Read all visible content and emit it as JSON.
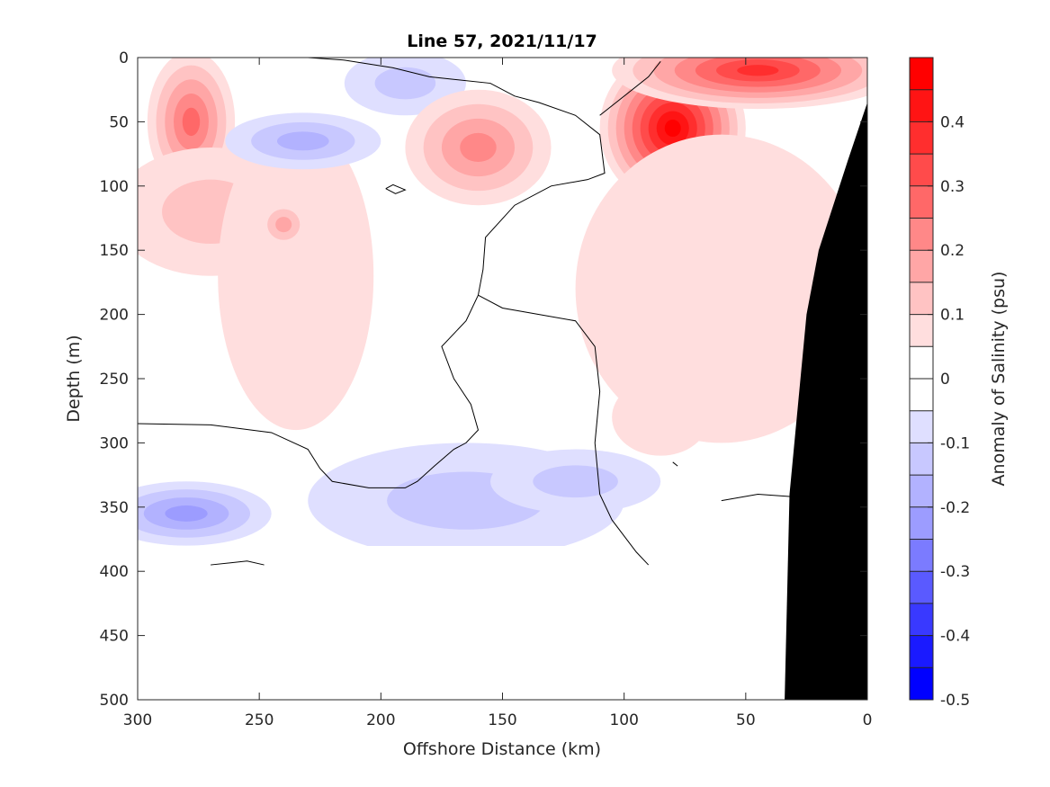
{
  "chart_data": {
    "type": "heatmap",
    "subtype": "filled-contour",
    "title": "Line 57, 2021/11/17",
    "xlabel": "Offshore Distance (km)",
    "ylabel": "Depth (m)",
    "xlim": [
      300,
      0
    ],
    "ylim": [
      500,
      0
    ],
    "x_axis_reversed": true,
    "y_axis_reversed": true,
    "xticks": [
      300,
      250,
      200,
      150,
      100,
      50,
      0
    ],
    "yticks": [
      0,
      50,
      100,
      150,
      200,
      250,
      300,
      350,
      400,
      450,
      500
    ],
    "grid": false,
    "colorbar": {
      "label": "Anomaly of Salinity (psu)",
      "range": [
        -0.5,
        0.5
      ],
      "levels": [
        -0.5,
        -0.45,
        -0.4,
        -0.35,
        -0.3,
        -0.25,
        -0.2,
        -0.15,
        -0.1,
        -0.05,
        0,
        0.05,
        0.1,
        0.15,
        0.2,
        0.25,
        0.3,
        0.35,
        0.4,
        0.45,
        0.5
      ],
      "tick_values": [
        -0.5,
        -0.4,
        -0.3,
        -0.2,
        -0.1,
        0,
        0.1,
        0.2,
        0.3,
        0.4
      ],
      "tick_labels": [
        "-0.5",
        "-0.4",
        "-0.3",
        "-0.2",
        "-0.1",
        "0",
        "0.1",
        "0.2",
        "0.3",
        "0.4"
      ],
      "colors": [
        "#0000ff",
        "#1a1aff",
        "#3939ff",
        "#5a5aff",
        "#7b7bff",
        "#9c9cff",
        "#b2b2ff",
        "#c8c8ff",
        "#dfdfff",
        "#ffffff",
        "#ffffff",
        "#ffdede",
        "#ffc3c3",
        "#ffa6a6",
        "#ff8888",
        "#ff6868",
        "#ff4b4b",
        "#ff2e2e",
        "#ff1414",
        "#ff0000"
      ]
    },
    "data_max_depth_m": 380,
    "anomaly_features": [
      {
        "x": 278,
        "y": 50,
        "value": 0.25,
        "rx": 18,
        "ry": 55
      },
      {
        "x": 270,
        "y": 120,
        "value": 0.1,
        "rx": 40,
        "ry": 50
      },
      {
        "x": 235,
        "y": 170,
        "value": 0.07,
        "rx": 32,
        "ry": 120
      },
      {
        "x": 240,
        "y": 130,
        "value": 0.15,
        "rx": 10,
        "ry": 18
      },
      {
        "x": 232,
        "y": 65,
        "value": -0.19,
        "rx": 32,
        "ry": 22
      },
      {
        "x": 190,
        "y": 20,
        "value": -0.1,
        "rx": 25,
        "ry": 25
      },
      {
        "x": 160,
        "y": 70,
        "value": 0.23,
        "rx": 30,
        "ry": 45
      },
      {
        "x": 80,
        "y": 55,
        "value": 0.45,
        "rx": 30,
        "ry": 60
      },
      {
        "x": 45,
        "y": 10,
        "value": 0.35,
        "rx": 60,
        "ry": 30
      },
      {
        "x": 60,
        "y": 180,
        "value": 0.07,
        "rx": 60,
        "ry": 120
      },
      {
        "x": 85,
        "y": 280,
        "value": 0.06,
        "rx": 20,
        "ry": 30
      },
      {
        "x": 280,
        "y": 355,
        "value": -0.2,
        "rx": 35,
        "ry": 25
      },
      {
        "x": 165,
        "y": 345,
        "value": -0.13,
        "rx": 65,
        "ry": 45
      },
      {
        "x": 120,
        "y": 330,
        "value": -0.12,
        "rx": 35,
        "ry": 25
      }
    ],
    "seafloor": {
      "x": [
        0,
        0,
        8,
        20,
        25,
        32,
        34,
        0
      ],
      "depth": [
        500,
        35,
        80,
        150,
        200,
        340,
        500,
        500
      ],
      "color": "#000000"
    }
  }
}
